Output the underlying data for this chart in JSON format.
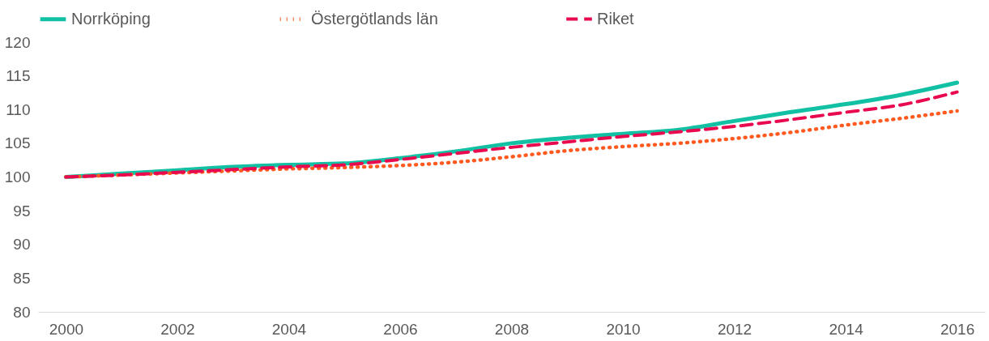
{
  "chart_data": {
    "type": "line",
    "x": [
      2000,
      2001,
      2002,
      2003,
      2004,
      2005,
      2006,
      2007,
      2008,
      2009,
      2010,
      2011,
      2012,
      2013,
      2014,
      2015,
      2016
    ],
    "xlim": [
      1999.5,
      2016.5
    ],
    "xticks": [
      2000,
      2002,
      2004,
      2006,
      2008,
      2010,
      2012,
      2014,
      2016
    ],
    "ylim": [
      80,
      120
    ],
    "yticks": [
      80,
      85,
      90,
      95,
      100,
      105,
      110,
      115,
      120
    ],
    "grid": false,
    "legend": "top",
    "marker": "none",
    "series": [
      {
        "name": "Norrköping",
        "color": "#12c0a4",
        "line_style": "solid",
        "values": [
          100,
          100.5,
          101,
          101.5,
          101.8,
          102,
          102.8,
          103.8,
          105,
          105.8,
          106.4,
          107,
          108.3,
          109.6,
          110.8,
          112.2,
          114
        ]
      },
      {
        "name": "Östergötlands län",
        "color": "#ff5a1f",
        "line_style": "dotted",
        "values": [
          100,
          100.3,
          100.6,
          100.9,
          101.2,
          101.4,
          101.7,
          102.2,
          103,
          103.9,
          104.5,
          105,
          105.7,
          106.6,
          107.7,
          108.7,
          109.8
        ]
      },
      {
        "name": "Riket",
        "color": "#e8094f",
        "line_style": "dashed",
        "values": [
          100,
          100.3,
          100.7,
          101.1,
          101.5,
          101.8,
          102.6,
          103.5,
          104.4,
          105.2,
          106,
          106.7,
          107.5,
          108.5,
          109.6,
          110.7,
          112.6
        ]
      }
    ]
  }
}
